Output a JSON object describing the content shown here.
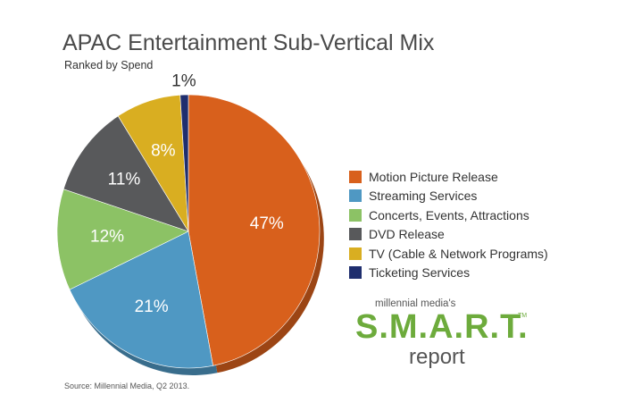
{
  "chart_data": {
    "type": "pie",
    "title": "APAC Entertainment Sub-Vertical Mix",
    "subtitle": "Ranked by Spend",
    "categories": [
      "Motion Picture Release",
      "Streaming Services",
      "Concerts, Events, Attractions",
      "DVD Release",
      "TV (Cable & Network Programs)",
      "Ticketing Services"
    ],
    "values": [
      47,
      21,
      12,
      11,
      8,
      1
    ],
    "data_labels": [
      "47%",
      "21%",
      "12%",
      "11%",
      "8%",
      "1%"
    ],
    "unit": "%",
    "colors": [
      "#d8601c",
      "#4f98c3",
      "#8cc265",
      "#58595b",
      "#d9ae21",
      "#1f2e6e"
    ],
    "legend_position": "right"
  },
  "source": "Source: Millennial Media, Q2 2013.",
  "logo": {
    "top": "millennial media's",
    "main": "S.M.A.R.T.",
    "tm": "TM",
    "bottom": "report"
  }
}
